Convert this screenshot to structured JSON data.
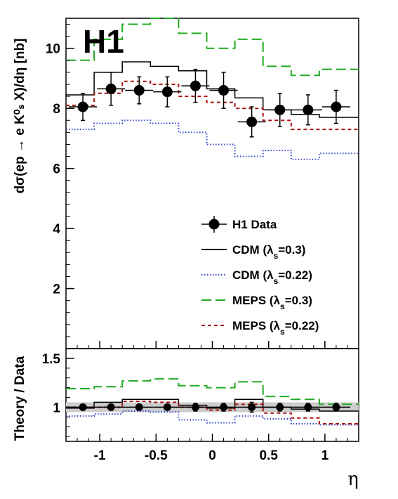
{
  "experiment_label": "H1",
  "chart_data": [
    {
      "panel": "main",
      "type": "line",
      "ylabel": "dσ(ep → e K⁰ₛ X)/dη [nb]",
      "ylim": [
        0,
        11
      ],
      "xlim": [
        -1.3,
        1.3
      ],
      "yticks": [
        2,
        4,
        6,
        8,
        10
      ],
      "ytick_labels": [
        "2",
        "4",
        "6",
        "8",
        "10"
      ],
      "data": {
        "name": "H1 Data",
        "x": [
          -1.15,
          -0.9,
          -0.65,
          -0.4,
          -0.15,
          0.1,
          0.35,
          0.6,
          0.85,
          1.1
        ],
        "y": [
          8.05,
          8.65,
          8.6,
          8.55,
          8.75,
          8.6,
          7.55,
          7.95,
          7.95,
          8.05
        ],
        "err": [
          0.45,
          0.55,
          0.45,
          0.5,
          0.55,
          0.6,
          0.5,
          0.55,
          0.5,
          0.55
        ],
        "xerr": 0.125
      },
      "bin_edges": [
        -1.3,
        -1.05,
        -0.8,
        -0.55,
        -0.3,
        -0.05,
        0.2,
        0.45,
        0.7,
        0.95,
        1.3
      ],
      "series": [
        {
          "name": "CDM (λs=0.3)",
          "color": "#000000",
          "dash": "solid",
          "values": [
            8.45,
            9.2,
            9.55,
            9.4,
            9.25,
            8.65,
            8.35,
            7.95,
            7.8,
            7.7
          ]
        },
        {
          "name": "CDM (λs=0.22)",
          "color": "#3344cc",
          "dash": "dotted",
          "values": [
            7.3,
            7.5,
            7.6,
            7.5,
            7.2,
            6.8,
            6.4,
            6.6,
            6.3,
            6.5
          ]
        },
        {
          "name": "MEPS (λs=0.3)",
          "color": "#22aa22",
          "dash": "long-dash",
          "values": [
            9.6,
            10.3,
            10.8,
            11.0,
            10.5,
            10.0,
            10.3,
            9.4,
            9.1,
            9.3
          ]
        },
        {
          "name": "MEPS (λs=0.22)",
          "color": "#aa1111",
          "dash": "short-dash",
          "values": [
            8.1,
            8.5,
            8.9,
            8.8,
            8.4,
            8.2,
            8.0,
            7.6,
            7.3,
            7.3
          ]
        }
      ],
      "legend": {
        "position": "lower-right",
        "entries": [
          {
            "label_main": "H1 Data",
            "label_sub": "",
            "label_rest": ""
          },
          {
            "label_main": "CDM (λ",
            "label_sub": "s",
            "label_rest": "=0.3)"
          },
          {
            "label_main": "CDM (λ",
            "label_sub": "s",
            "label_rest": "=0.22)"
          },
          {
            "label_main": "MEPS (λ",
            "label_sub": "s",
            "label_rest": "=0.3)"
          },
          {
            "label_main": "MEPS (λ",
            "label_sub": "s",
            "label_rest": "=0.22)"
          }
        ]
      }
    },
    {
      "panel": "ratio",
      "type": "line",
      "ylabel": "Theory / Data",
      "xlabel": "η",
      "ylim": [
        0.65,
        1.6
      ],
      "xlim": [
        -1.3,
        1.3
      ],
      "yticks": [
        1,
        1.5
      ],
      "ytick_labels": [
        "1",
        "1.5"
      ],
      "xticks": [
        -1,
        -0.5,
        0,
        0.5,
        1
      ],
      "xtick_labels": [
        "-1",
        "-0.5",
        "0",
        "0.5",
        "1"
      ],
      "band": {
        "low": 0.95,
        "high": 1.05,
        "color": "#cccccc"
      },
      "data": {
        "x": [
          -1.15,
          -0.9,
          -0.65,
          -0.4,
          -0.15,
          0.1,
          0.35,
          0.6,
          0.85,
          1.1
        ],
        "y": [
          1.0,
          1.0,
          1.0,
          1.0,
          1.0,
          1.0,
          1.0,
          1.0,
          1.0,
          1.0
        ],
        "err": [
          0.03,
          0.03,
          0.0,
          0.0,
          0.04,
          0.04,
          0.05,
          0.04,
          0.04,
          0.04
        ]
      },
      "bin_edges": [
        -1.3,
        -1.05,
        -0.8,
        -0.55,
        -0.3,
        -0.05,
        0.2,
        0.45,
        0.7,
        0.95,
        1.3
      ],
      "series": [
        {
          "name": "CDM (λs=0.3)",
          "color": "#000000",
          "dash": "solid",
          "values": [
            0.99,
            1.05,
            1.08,
            1.08,
            1.02,
            0.99,
            1.08,
            1.0,
            0.98,
            0.96
          ]
        },
        {
          "name": "CDM (λs=0.22)",
          "color": "#3344cc",
          "dash": "dotted",
          "values": [
            0.91,
            0.93,
            0.96,
            0.95,
            0.87,
            0.84,
            0.91,
            0.88,
            0.83,
            0.82
          ]
        },
        {
          "name": "MEPS (λs=0.3)",
          "color": "#22aa22",
          "dash": "long-dash",
          "values": [
            1.19,
            1.21,
            1.27,
            1.29,
            1.22,
            1.2,
            1.26,
            1.11,
            1.08,
            1.03
          ]
        },
        {
          "name": "MEPS (λs=0.22)",
          "color": "#aa1111",
          "dash": "short-dash",
          "values": [
            1.0,
            1.0,
            1.06,
            1.05,
            1.0,
            0.97,
            1.03,
            0.94,
            0.89,
            0.83
          ]
        }
      ]
    }
  ]
}
